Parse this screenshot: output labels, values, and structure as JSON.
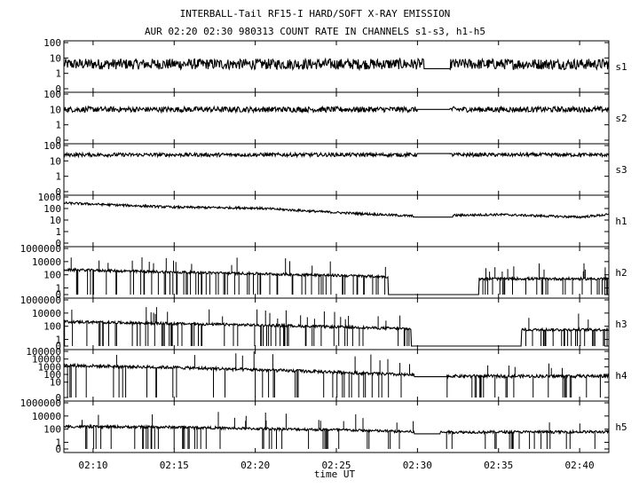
{
  "title_line1": "INTERBALL-Tail RF15-I HARD/SOFT X-RAY EMISSION",
  "title_line2": "AUR 02:20 02:30 980313  COUNT RATE IN CHANNELS s1-s3, h1-h5",
  "xlabel": "time UT",
  "chart_data": {
    "type": "line",
    "title": "INTERBALL-Tail RF15-I HARD/SOFT X-RAY EMISSION",
    "subtitle": "AUR 02:20 02:30 980313  COUNT RATE IN CHANNELS s1-s3, h1-h5",
    "xlabel": "time UT",
    "x_unit": "minutes UT",
    "xlim": [
      488.2,
      521.8
    ],
    "x_ticks": [
      {
        "value": 490,
        "label": "02:10"
      },
      {
        "value": 495,
        "label": "02:15"
      },
      {
        "value": 500,
        "label": "02:20"
      },
      {
        "value": 505,
        "label": "02:25"
      },
      {
        "value": 510,
        "label": "02:30"
      },
      {
        "value": 515,
        "label": "02:35"
      },
      {
        "value": 520,
        "label": "02:40"
      }
    ],
    "grid": false,
    "log_scale_y": true,
    "panels": [
      {
        "name": "s1",
        "ylim": [
          0,
          100
        ],
        "y_ticks": [
          "100",
          "10",
          "1",
          "0"
        ],
        "level": 4,
        "noise": 0.35,
        "spikes": 0,
        "gap": [
          510.4,
          512.0
        ],
        "gap_level": 2,
        "trend": [
          [
            488.2,
            4
          ],
          [
            521.8,
            4
          ]
        ]
      },
      {
        "name": "s2",
        "ylim": [
          0,
          100
        ],
        "y_ticks": [
          "100",
          "10",
          "1",
          "0"
        ],
        "level": 10,
        "noise": 0.18,
        "spikes": 0,
        "gap": [
          510.0,
          512.0
        ],
        "gap_level": 10,
        "trend": [
          [
            488.2,
            10
          ],
          [
            521.8,
            10
          ]
        ]
      },
      {
        "name": "s3",
        "ylim": [
          0,
          100
        ],
        "y_ticks": [
          "100",
          "10",
          "1",
          "0"
        ],
        "level": 25,
        "noise": 0.12,
        "spikes": 0,
        "gap": [
          510.0,
          512.0
        ],
        "gap_level": 30,
        "trend": [
          [
            488.2,
            25
          ],
          [
            521.8,
            25
          ]
        ]
      },
      {
        "name": "h1",
        "ylim": [
          0,
          1000
        ],
        "y_ticks": [
          "1000",
          "100",
          "10",
          "1",
          "0"
        ],
        "level": 150,
        "noise": 0.1,
        "spikes": 0,
        "gap": [
          509.8,
          512.2
        ],
        "gap_level": 18,
        "trend": [
          [
            488.2,
            300
          ],
          [
            495,
            130
          ],
          [
            500,
            110
          ],
          [
            505,
            45
          ],
          [
            509.8,
            22
          ],
          [
            515,
            30
          ],
          [
            520,
            18
          ],
          [
            521.8,
            30
          ]
        ]
      },
      {
        "name": "h2",
        "ylim": [
          0,
          1000000
        ],
        "y_ticks": [
          "1000000",
          "10000",
          "100",
          "1",
          "0"
        ],
        "level": 200,
        "noise": 0.2,
        "spikes": 0.15,
        "gap": [
          508.2,
          513.8
        ],
        "gap_level": 0,
        "trend": [
          [
            488.2,
            600
          ],
          [
            495,
            250
          ],
          [
            500,
            150
          ],
          [
            505,
            80
          ],
          [
            508.2,
            50
          ],
          [
            513.8,
            25
          ],
          [
            521.8,
            25
          ]
        ]
      },
      {
        "name": "h3",
        "ylim": [
          0,
          1000000
        ],
        "y_ticks": [
          "1000000",
          "10000",
          "100",
          "1",
          "0"
        ],
        "level": 200,
        "noise": 0.2,
        "spikes": 0.15,
        "gap": [
          509.6,
          516.4
        ],
        "gap_level": 0,
        "trend": [
          [
            488.2,
            500
          ],
          [
            495,
            250
          ],
          [
            500,
            150
          ],
          [
            505,
            80
          ],
          [
            509.6,
            40
          ],
          [
            516.4,
            30
          ],
          [
            521.8,
            30
          ]
        ]
      },
      {
        "name": "h4",
        "ylim": [
          0,
          100000
        ],
        "y_ticks": [
          "100000",
          "10000",
          "1000",
          "100",
          "10",
          "0"
        ],
        "level": 300,
        "noise": 0.2,
        "spikes": 0.1,
        "gap": [
          509.8,
          511.8
        ],
        "gap_level": 50,
        "trend": [
          [
            488.2,
            1500
          ],
          [
            495,
            800
          ],
          [
            500,
            400
          ],
          [
            505,
            200
          ],
          [
            509.8,
            80
          ],
          [
            511.8,
            60
          ],
          [
            521.8,
            60
          ]
        ]
      },
      {
        "name": "h5",
        "ylim": [
          0,
          1000000
        ],
        "y_ticks": [
          "1000000",
          "10000",
          "100",
          "1",
          "0"
        ],
        "level": 200,
        "noise": 0.2,
        "spikes": 0.08,
        "gap": [
          509.8,
          511.4
        ],
        "gap_level": 20,
        "trend": [
          [
            488.2,
            250
          ],
          [
            495,
            200
          ],
          [
            500,
            120
          ],
          [
            505,
            80
          ],
          [
            509.8,
            40
          ],
          [
            511.4,
            35
          ],
          [
            521.8,
            40
          ]
        ]
      }
    ]
  }
}
